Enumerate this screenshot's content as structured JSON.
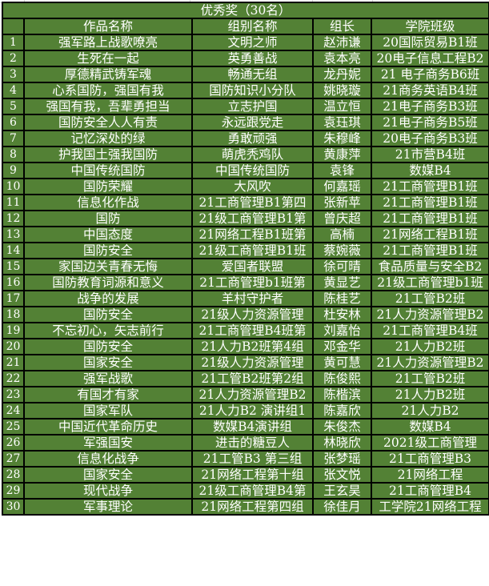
{
  "colors": {
    "cell_background": "#538135",
    "text": "#ffffff",
    "border": "#000000"
  },
  "title": "优秀奖（30名）",
  "columns": [
    "",
    "作品名称",
    "组别名称",
    "组长",
    "学院班级"
  ],
  "rows": [
    [
      "1",
      "强军路上战歌嘹亮",
      "文明之师",
      "赵沛谦",
      "20国际贸易B1班"
    ],
    [
      "2",
      "生死在一起",
      "英勇善战",
      "袁本亮",
      "20电子信息工程B2"
    ],
    [
      "3",
      "厚德精武铸军魂",
      "畅通无组",
      "龙丹妮",
      "21 电子商务B6班"
    ],
    [
      "4",
      "心系国防，强国有我",
      "国防知识小分队",
      "姚晓璇",
      "21商务英语B4班"
    ],
    [
      "5",
      "强国有我，吾辈勇担当",
      "立志护国",
      "温立恒",
      "21电子商务B3班"
    ],
    [
      "6",
      "国防安全人人有责",
      "永远跟党走",
      "袁珏琪",
      "21电子商务B5班"
    ],
    [
      "7",
      "记忆深处的绿",
      "勇敢顽强",
      "朱穆峰",
      "20电子商务B3班"
    ],
    [
      "8",
      "护我国土强我国防",
      "萌虎秃鸡队",
      "黄康萍",
      "21市营B4班"
    ],
    [
      "9",
      "中国传统国防",
      "中国传统国防",
      "袁锋",
      "数媒B4"
    ],
    [
      "10",
      "国防荣耀",
      "大风吹",
      "何嘉瑶",
      "21工商管理B1班"
    ],
    [
      "11",
      "信息化作战",
      "21工商管理B1第四",
      "张新苹",
      "21工商管理B1班"
    ],
    [
      "12",
      "国防",
      "21级工商管理B1第",
      "曾庆超",
      "21工商管理B1班"
    ],
    [
      "13",
      "中国态度",
      "21网络工程B1班第",
      "高楠",
      "21网络工程B1班"
    ],
    [
      "14",
      "国防安全",
      "21级工商管理B1班",
      "蔡婉薇",
      "21工商管理B1班"
    ],
    [
      "15",
      "家国边关青春无悔",
      "爱国者联盟",
      "徐可晴",
      "食品质量与安全B2"
    ],
    [
      "16",
      "国防教育词源和意义",
      "21工商管理b1班第",
      "黄显艺",
      "21级工商管理b1班"
    ],
    [
      "17",
      "战争的发展",
      "羊村守护者",
      "陈桂艺",
      "21工管B2班"
    ],
    [
      "18",
      "国防安全",
      "21级人力资源管理",
      "杜安林",
      "21人力资源管理B2"
    ],
    [
      "19",
      "不忘初心，矢志前行",
      "21工商管理B4班第",
      "刘嘉怡",
      "21工商管理B4班"
    ],
    [
      "20",
      "国防安全",
      "21人力B2班第4组",
      "邓金华",
      "21人力B2班"
    ],
    [
      "21",
      "国家安全",
      "21级人力资源管理",
      "黄可慧",
      "21人力资源管理B2"
    ],
    [
      "22",
      "强军战歌",
      "21工管B2班第2组",
      "陈俊熙",
      "21工管B2班"
    ],
    [
      "23",
      "有国才有家",
      "21人力资源管理B2",
      "陈楷滨",
      "21人力B2班"
    ],
    [
      "24",
      "国家军队",
      "21人力B2 演讲组1",
      "陈嘉欣",
      "21人力B2"
    ],
    [
      "25",
      "中国近代革命历史",
      "数媒B4演讲组",
      "朱俊杰",
      "数媒B4"
    ],
    [
      "26",
      "军强国安",
      "进击的糖豆人",
      "林晓欣",
      "2021级工商管理"
    ],
    [
      "27",
      "信息化战争",
      "21工管B3 第三组",
      "张梦瑶",
      "21工商管理B3"
    ],
    [
      "28",
      "国家安全",
      "21网络工程第十组",
      "张文悦",
      "21网络工程"
    ],
    [
      "29",
      "现代战争",
      "21级工商管理B4第",
      "王玄昊",
      "21工商管理B4"
    ],
    [
      "30",
      "军事理论",
      "21网络工程第四组",
      "徐佳月",
      "工学院21网络工程"
    ]
  ]
}
